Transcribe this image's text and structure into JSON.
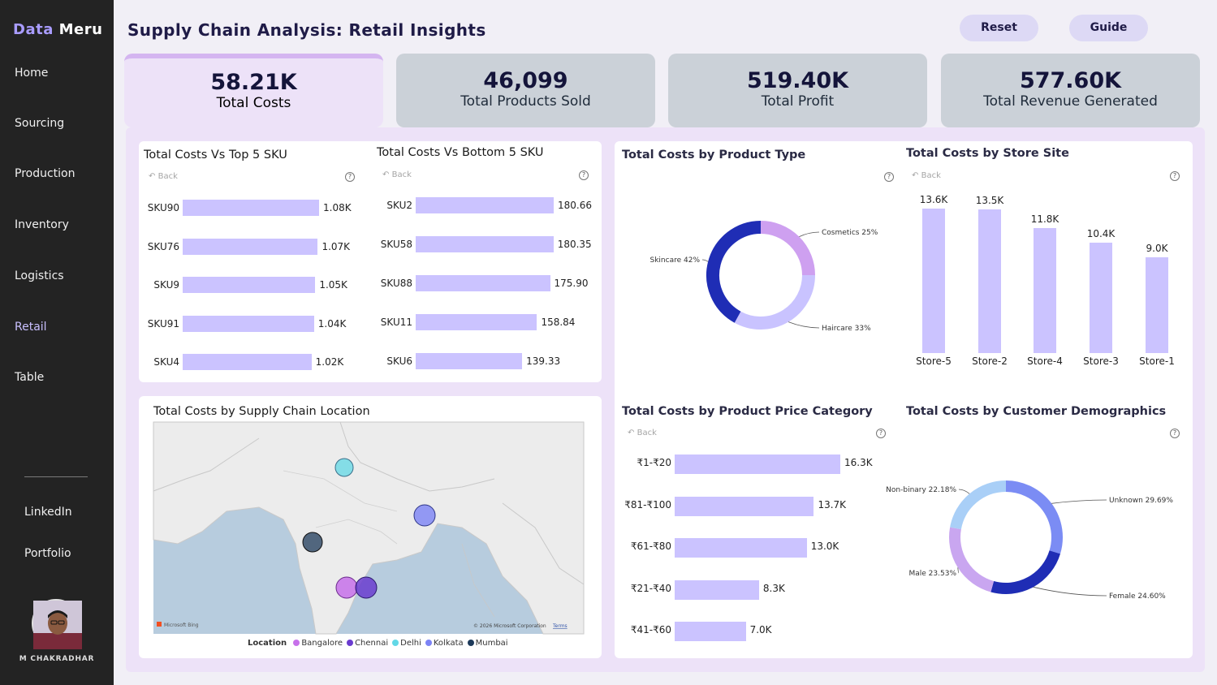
{
  "brand": {
    "part1": "Data",
    "part2": "Meru"
  },
  "nav": [
    "Home",
    "Sourcing",
    "Production",
    "Inventory",
    "Logistics",
    "Retail",
    "Table"
  ],
  "links": [
    "LinkedIn",
    "Portfolio"
  ],
  "user": {
    "name": "M CHAKRADHAR"
  },
  "title": "Supply Chain Analysis: Retail Insights",
  "buttons": {
    "reset": "Reset",
    "guide": "Guide"
  },
  "kpis": [
    {
      "value": "58.21K",
      "label": "Total Costs"
    },
    {
      "value": "46,099",
      "label": "Total Products Sold"
    },
    {
      "value": "519.40K",
      "label": "Total Profit"
    },
    {
      "value": "577.60K",
      "label": "Total Revenue Generated"
    }
  ],
  "common": {
    "back": "Back",
    "help": "?"
  },
  "top5": {
    "title": "Total Costs Vs Top 5 SKU",
    "labels": [
      "SKU90",
      "SKU76",
      "SKU9",
      "SKU91",
      "SKU4"
    ],
    "values": [
      1080,
      1070,
      1050,
      1040,
      1020
    ],
    "display": [
      "1.08K",
      "1.07K",
      "1.05K",
      "1.04K",
      "1.02K"
    ]
  },
  "bottom5": {
    "title": "Total Costs Vs Bottom 5 SKU",
    "labels": [
      "SKU2",
      "SKU58",
      "SKU88",
      "SKU11",
      "SKU6"
    ],
    "values": [
      180.66,
      180.35,
      175.9,
      158.84,
      139.33
    ],
    "display": [
      "180.66",
      "180.35",
      "175.90",
      "158.84",
      "139.33"
    ]
  },
  "product_type": {
    "title": "Total Costs by Product Type",
    "slices": [
      {
        "label": "Cosmetics 25%",
        "value": 25,
        "color": "#cea0f0"
      },
      {
        "label": "Haircare 33%",
        "value": 33,
        "color": "#c9c3ff"
      },
      {
        "label": "Skincare 42%",
        "value": 42,
        "color": "#1f2db5"
      }
    ]
  },
  "store_site": {
    "title": "Total Costs by Store Site",
    "labels": [
      "Store-5",
      "Store-2",
      "Store-4",
      "Store-3",
      "Store-1"
    ],
    "values": [
      13.6,
      13.5,
      11.8,
      10.4,
      9.0
    ],
    "display": [
      "13.6K",
      "13.5K",
      "11.8K",
      "10.4K",
      "9.0K"
    ]
  },
  "map": {
    "title": "Total Costs by Supply Chain Location",
    "legend_title": "Location",
    "locations": [
      {
        "name": "Bangalore",
        "color": "#c771ea"
      },
      {
        "name": "Chennai",
        "color": "#6a3ccf"
      },
      {
        "name": "Delhi",
        "color": "#62d8e6"
      },
      {
        "name": "Kolkata",
        "color": "#7c83f5"
      },
      {
        "name": "Mumbai",
        "color": "#1d3a5a"
      }
    ],
    "attribution": "© 2026 Microsoft Corporation",
    "terms": "Terms",
    "provider": "Microsoft Bing"
  },
  "price_category": {
    "title": "Total Costs by Product Price Category",
    "labels": [
      "₹1-₹20",
      "₹81-₹100",
      "₹61-₹80",
      "₹21-₹40",
      "₹41-₹60"
    ],
    "values": [
      16.3,
      13.7,
      13.0,
      8.3,
      7.0
    ],
    "display": [
      "16.3K",
      "13.7K",
      "13.0K",
      "8.3K",
      "7.0K"
    ]
  },
  "demographics": {
    "title": "Total Costs by Customer Demographics",
    "slices": [
      {
        "label": "Unknown 29.69%",
        "value": 29.69,
        "color": "#7b8cf4"
      },
      {
        "label": "Female 24.60%",
        "value": 24.6,
        "color": "#1f2db5"
      },
      {
        "label": "Male 23.53%",
        "value": 23.53,
        "color": "#c9a6f0"
      },
      {
        "label": "Non-binary 22.18%",
        "value": 22.18,
        "color": "#a9cff7"
      }
    ]
  }
}
